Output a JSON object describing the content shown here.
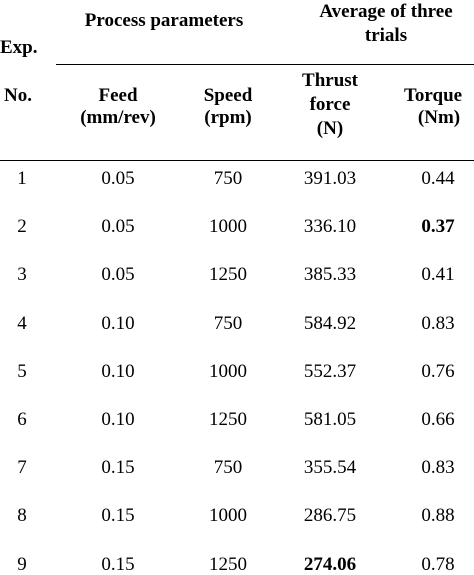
{
  "header": {
    "exp_label": "Exp.",
    "no_label": "No.",
    "process_parameters": "Process parameters",
    "average_line1": "Average of three",
    "average_line2": "trials",
    "feed_line1": "Feed",
    "feed_line2": "(mm/rev)",
    "speed_line1": "Speed",
    "speed_line2": "(rpm)",
    "thrust_line1": "Thrust",
    "thrust_line2": "force",
    "thrust_line3": "(N)",
    "torque_line1": "Torque",
    "torque_line2": "(Nm)"
  },
  "rows": [
    {
      "exp": "1",
      "feed": "0.05",
      "speed": "750",
      "thrust": "391.03",
      "torque": "0.44",
      "thrust_bold": false,
      "torque_bold": false
    },
    {
      "exp": "2",
      "feed": "0.05",
      "speed": "1000",
      "thrust": "336.10",
      "torque": "0.37",
      "thrust_bold": false,
      "torque_bold": true
    },
    {
      "exp": "3",
      "feed": "0.05",
      "speed": "1250",
      "thrust": "385.33",
      "torque": "0.41",
      "thrust_bold": false,
      "torque_bold": false
    },
    {
      "exp": "4",
      "feed": "0.10",
      "speed": "750",
      "thrust": "584.92",
      "torque": "0.83",
      "thrust_bold": false,
      "torque_bold": false
    },
    {
      "exp": "5",
      "feed": "0.10",
      "speed": "1000",
      "thrust": "552.37",
      "torque": "0.76",
      "thrust_bold": false,
      "torque_bold": false
    },
    {
      "exp": "6",
      "feed": "0.10",
      "speed": "1250",
      "thrust": "581.05",
      "torque": "0.66",
      "thrust_bold": false,
      "torque_bold": false
    },
    {
      "exp": "7",
      "feed": "0.15",
      "speed": "750",
      "thrust": "355.54",
      "torque": "0.83",
      "thrust_bold": false,
      "torque_bold": false
    },
    {
      "exp": "8",
      "feed": "0.15",
      "speed": "1000",
      "thrust": "286.75",
      "torque": "0.88",
      "thrust_bold": false,
      "torque_bold": false
    },
    {
      "exp": "9",
      "feed": "0.15",
      "speed": "1250",
      "thrust": "274.06",
      "torque": "0.78",
      "thrust_bold": true,
      "torque_bold": false
    }
  ]
}
